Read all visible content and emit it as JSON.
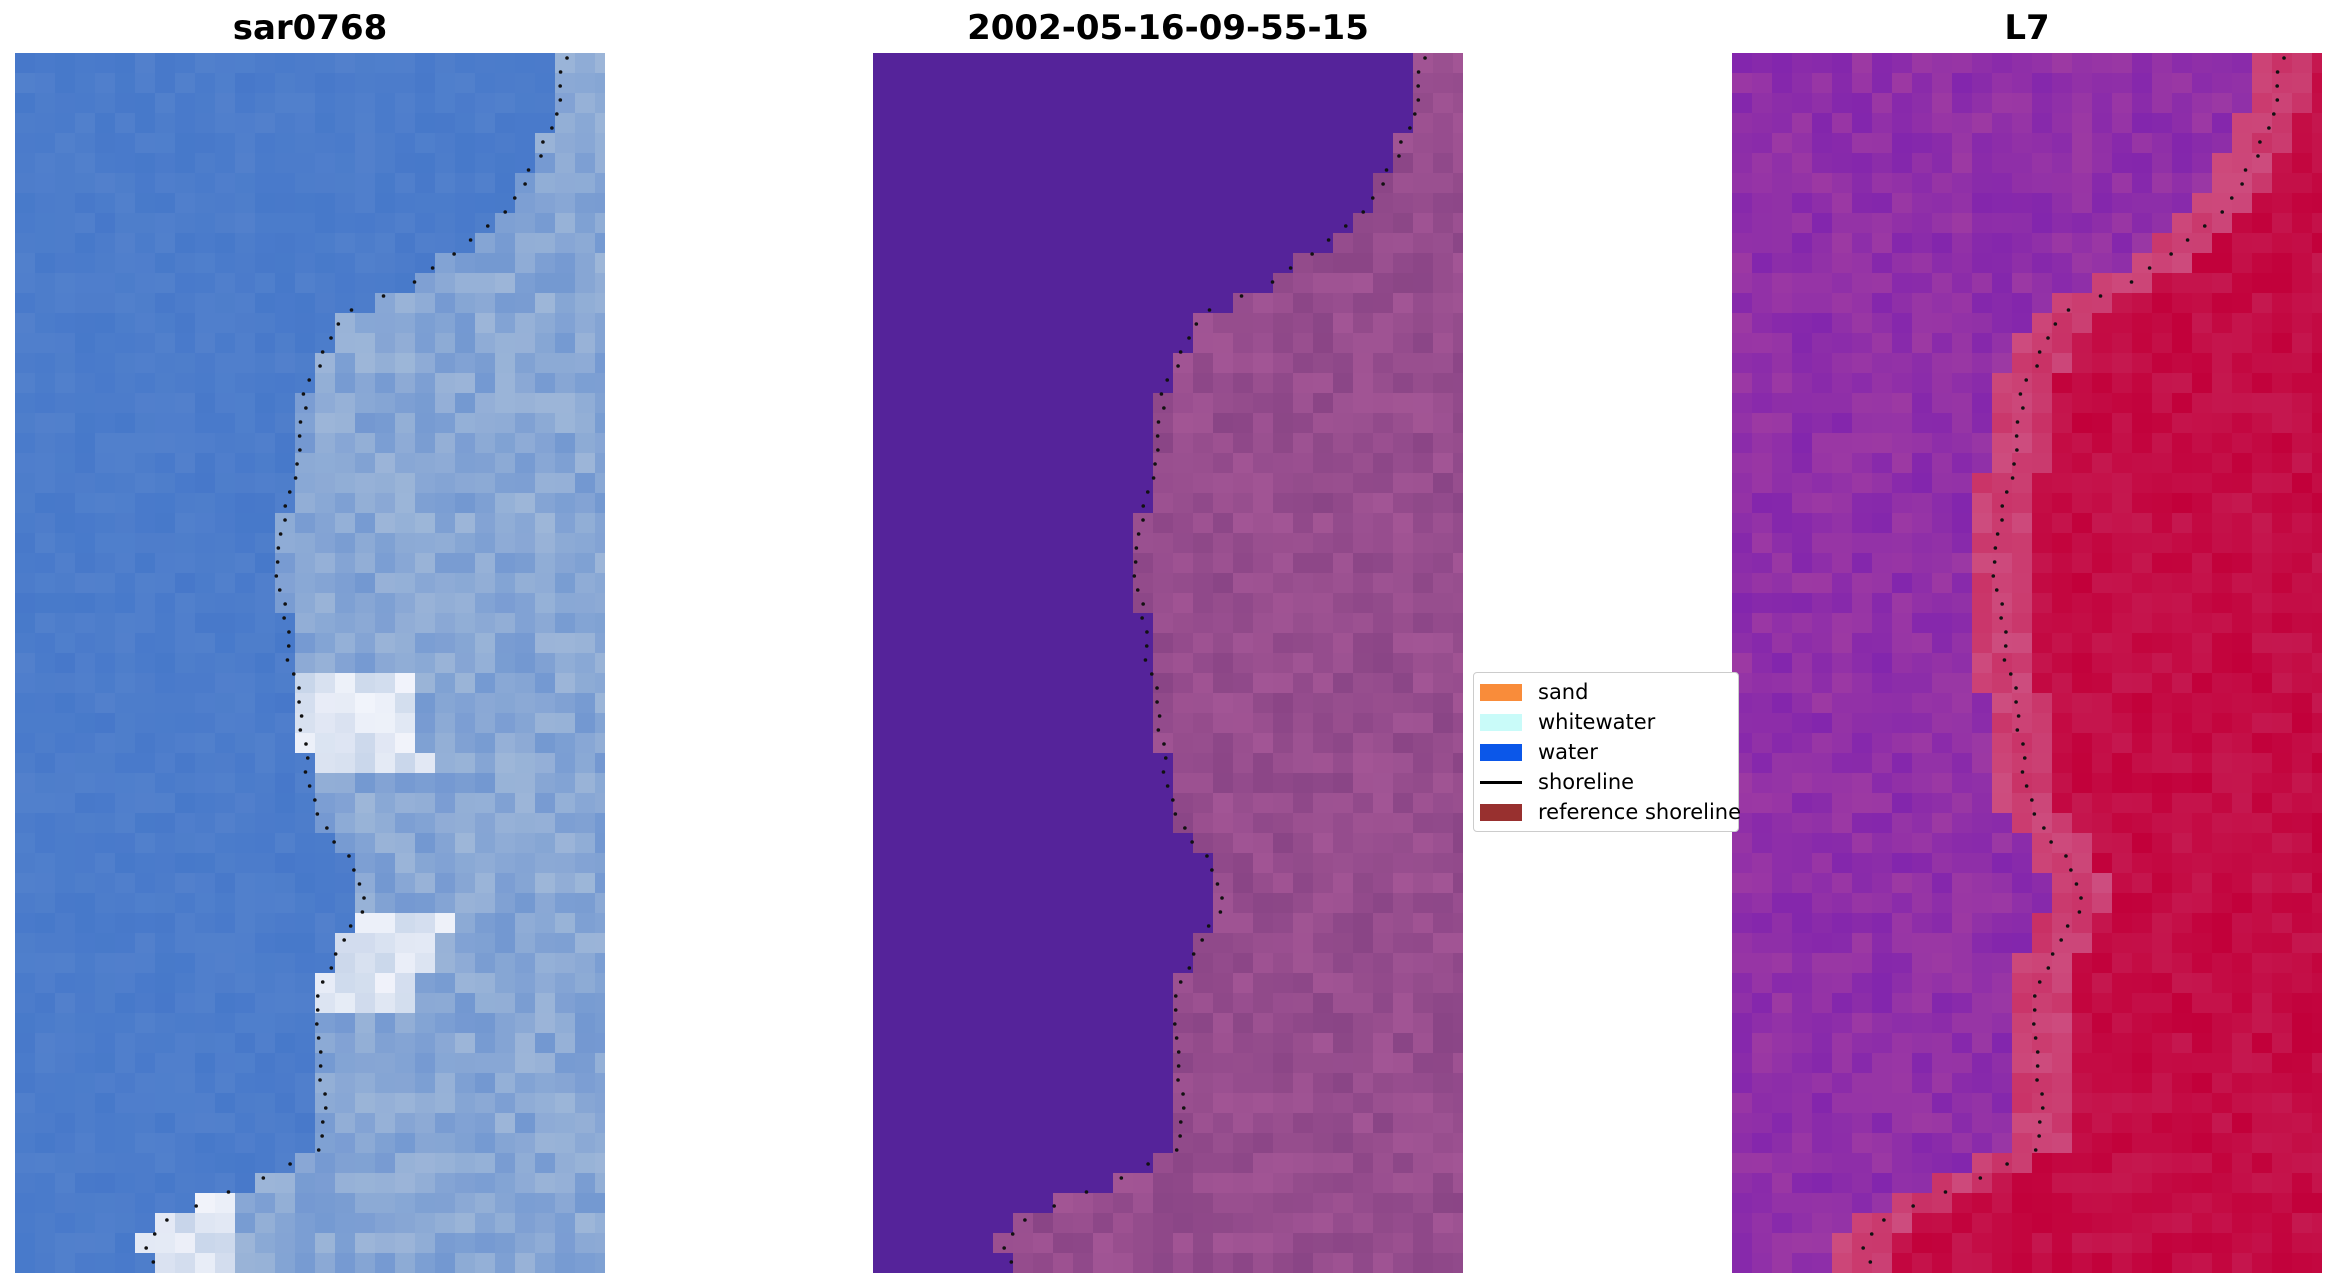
{
  "titles": {
    "left": "sar0768",
    "middle": "2002-05-16-09-55-15",
    "right": "L7"
  },
  "legend": {
    "items": [
      {
        "label": "sand",
        "color": "#f98c3a",
        "kind": "patch"
      },
      {
        "label": "whitewater",
        "color": "#c9fbf9",
        "kind": "patch"
      },
      {
        "label": "water",
        "color": "#0b57e9",
        "kind": "patch"
      },
      {
        "label": "shoreline",
        "color": "#000000",
        "kind": "line"
      },
      {
        "label": "reference shoreline",
        "color": "#98302f",
        "kind": "patch"
      }
    ]
  },
  "colors": {
    "rgb_water": "#3f73c9",
    "rgb_land": "#9db6d8",
    "rgb_foam": "#f2f4fb",
    "class_water": "#55239a",
    "class_land": "#8a4586",
    "class_highlight": "#b3609f",
    "index_water": "#7a1fb0",
    "index_land": "#c2003a",
    "index_transition": "#d06090"
  }
}
